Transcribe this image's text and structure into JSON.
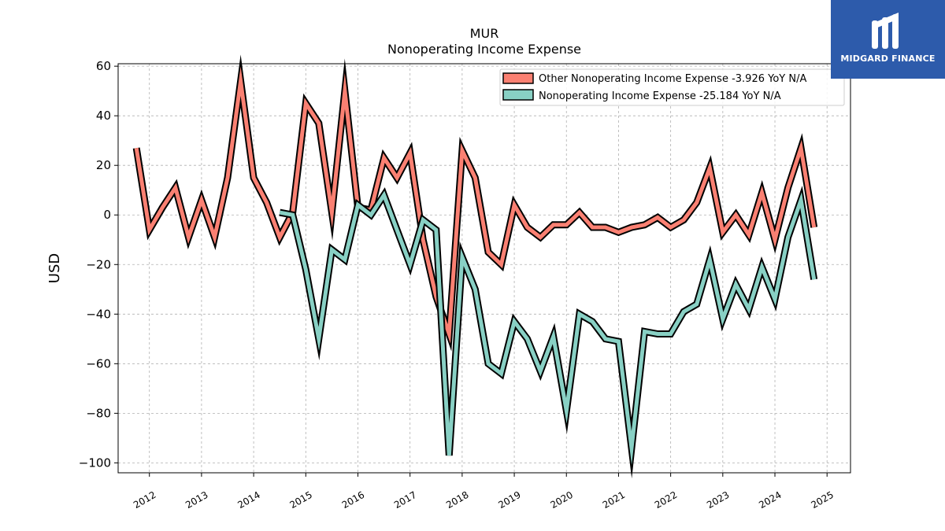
{
  "chart_data": {
    "type": "line",
    "title": "MUR",
    "subtitle": "Nonoperating Income Expense",
    "ylabel": "USD",
    "xlabel": "",
    "ylim": [
      -104,
      61
    ],
    "xlim": [
      2011.4,
      2025.45
    ],
    "y_ticks": [
      60,
      40,
      20,
      0,
      -20,
      -40,
      -60,
      -80,
      -100
    ],
    "y_tick_labels": [
      "60",
      "40",
      "20",
      "0",
      "−20",
      "−40",
      "−60",
      "−80",
      "−100"
    ],
    "x_ticks": [
      2012,
      2013,
      2014,
      2015,
      2016,
      2017,
      2018,
      2019,
      2020,
      2021,
      2022,
      2023,
      2024,
      2025
    ],
    "x_tick_labels": [
      "2012",
      "2013",
      "2014",
      "2015",
      "2016",
      "2017",
      "2018",
      "2019",
      "2020",
      "2021",
      "2022",
      "2023",
      "2024",
      "2025"
    ],
    "grid": true,
    "legend_position": "top-right",
    "series": [
      {
        "name": "Other Nonoperating Income Expense",
        "legend_label": "Other Nonoperating Income Expense  -3.926 YoY N/A",
        "color": "#fa8072",
        "points": [
          [
            2011.75,
            27
          ],
          [
            2012.0,
            -6
          ],
          [
            2012.25,
            3
          ],
          [
            2012.5,
            11
          ],
          [
            2012.75,
            -9
          ],
          [
            2013.0,
            6
          ],
          [
            2013.25,
            -9
          ],
          [
            2013.5,
            15
          ],
          [
            2013.75,
            54
          ],
          [
            2014.0,
            15
          ],
          [
            2014.25,
            5
          ],
          [
            2014.5,
            -9
          ],
          [
            2014.75,
            1
          ],
          [
            2015.0,
            45
          ],
          [
            2015.25,
            37
          ],
          [
            2015.5,
            1
          ],
          [
            2015.75,
            50
          ],
          [
            2016.0,
            3
          ],
          [
            2016.25,
            2
          ],
          [
            2016.5,
            23
          ],
          [
            2016.75,
            15
          ],
          [
            2017.0,
            25
          ],
          [
            2017.25,
            -10
          ],
          [
            2017.5,
            -33
          ],
          [
            2017.75,
            -48
          ],
          [
            2018.0,
            26
          ],
          [
            2018.25,
            15
          ],
          [
            2018.5,
            -15
          ],
          [
            2018.75,
            -20
          ],
          [
            2019.0,
            4
          ],
          [
            2019.25,
            -5
          ],
          [
            2019.5,
            -9
          ],
          [
            2019.75,
            -4
          ],
          [
            2020.0,
            -4
          ],
          [
            2020.25,
            1
          ],
          [
            2020.5,
            -5
          ],
          [
            2020.75,
            -5
          ],
          [
            2021.0,
            -7
          ],
          [
            2021.25,
            -5
          ],
          [
            2021.5,
            -4
          ],
          [
            2021.75,
            -1
          ],
          [
            2022.0,
            -5
          ],
          [
            2022.25,
            -2
          ],
          [
            2022.5,
            5
          ],
          [
            2022.75,
            19
          ],
          [
            2023.0,
            -7
          ],
          [
            2023.25,
            0
          ],
          [
            2023.5,
            -8
          ],
          [
            2023.75,
            9
          ],
          [
            2024.0,
            -10
          ],
          [
            2024.25,
            11
          ],
          [
            2024.5,
            27
          ],
          [
            2024.75,
            -5
          ]
        ]
      },
      {
        "name": "Nonoperating Income Expense",
        "legend_label": "Nonoperating Income Expense  -25.184 YoY N/A",
        "color": "#88d0c4",
        "points": [
          [
            2014.5,
            1
          ],
          [
            2014.75,
            0
          ],
          [
            2015.0,
            -22
          ],
          [
            2015.25,
            -50
          ],
          [
            2015.5,
            -14
          ],
          [
            2015.75,
            -18
          ],
          [
            2016.0,
            4
          ],
          [
            2016.25,
            0
          ],
          [
            2016.5,
            8
          ],
          [
            2016.75,
            -6
          ],
          [
            2017.0,
            -20
          ],
          [
            2017.25,
            -2
          ],
          [
            2017.5,
            -6
          ],
          [
            2017.75,
            -97
          ],
          [
            2018.0,
            -17
          ],
          [
            2018.25,
            -30
          ],
          [
            2018.5,
            -60
          ],
          [
            2018.75,
            -64
          ],
          [
            2019.0,
            -43
          ],
          [
            2019.25,
            -50
          ],
          [
            2019.5,
            -63
          ],
          [
            2019.75,
            -49
          ],
          [
            2020.0,
            -79
          ],
          [
            2020.25,
            -40
          ],
          [
            2020.5,
            -43
          ],
          [
            2020.75,
            -50
          ],
          [
            2021.0,
            -51
          ],
          [
            2021.25,
            -94
          ],
          [
            2021.5,
            -47
          ],
          [
            2021.75,
            -48
          ],
          [
            2022.0,
            -48
          ],
          [
            2022.25,
            -39
          ],
          [
            2022.5,
            -36
          ],
          [
            2022.75,
            -18
          ],
          [
            2023.0,
            -42
          ],
          [
            2023.25,
            -28
          ],
          [
            2023.5,
            -38
          ],
          [
            2023.75,
            -21
          ],
          [
            2024.0,
            -34
          ],
          [
            2024.25,
            -9
          ],
          [
            2024.5,
            6
          ],
          [
            2024.75,
            -26
          ]
        ]
      }
    ]
  },
  "logo": {
    "text": "MIDGARD FINANCE",
    "background": "#2d5bab"
  }
}
